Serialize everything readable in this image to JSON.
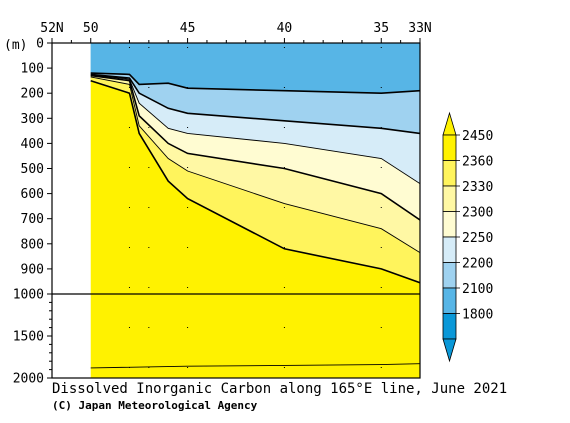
{
  "chart_data": {
    "type": "heatmap",
    "title": "Dissolved Inorganic Carbon along 165°E line, June 2021",
    "credit": "(C) Japan Meteorological Agency",
    "ylabel": "(m)",
    "x_ticks": [
      {
        "lat": 52,
        "label": "52N"
      },
      {
        "lat": 50,
        "label": "50"
      },
      {
        "lat": 45,
        "label": "45"
      },
      {
        "lat": 40,
        "label": "40"
      },
      {
        "lat": 35,
        "label": "35"
      },
      {
        "lat": 33,
        "label": "33N"
      }
    ],
    "x_minor_ticks": [
      51,
      49,
      48,
      47,
      46,
      44,
      43,
      42,
      41,
      39,
      38,
      37,
      36,
      34
    ],
    "y_ticks_upper": [
      {
        "depth": 0,
        "label": "0"
      },
      {
        "depth": 100,
        "label": "100"
      },
      {
        "depth": 200,
        "label": "200"
      },
      {
        "depth": 300,
        "label": "300"
      },
      {
        "depth": 400,
        "label": "400"
      },
      {
        "depth": 500,
        "label": "500"
      },
      {
        "depth": 600,
        "label": "600"
      },
      {
        "depth": 700,
        "label": "700"
      },
      {
        "depth": 800,
        "label": "800"
      },
      {
        "depth": 900,
        "label": "900"
      },
      {
        "depth": 1000,
        "label": "1000"
      }
    ],
    "y_ticks_lower": [
      {
        "depth": 1500,
        "label": "1500"
      },
      {
        "depth": 2000,
        "label": "2000"
      }
    ],
    "xlim": [
      52,
      33
    ],
    "ylim": [
      0,
      2000
    ],
    "data_lat_range": [
      50,
      33
    ],
    "stations_lat": [
      48,
      47,
      45,
      40,
      35
    ],
    "colorbar": {
      "labels": [
        "2450",
        "2360",
        "2330",
        "2300",
        "2250",
        "2200",
        "2100",
        "1800"
      ],
      "levels": [
        {
          "color": "#fff200"
        },
        {
          "color": "#fff45c"
        },
        {
          "color": "#fff8a4"
        },
        {
          "color": "#fffcd2"
        },
        {
          "color": "#d6ecf8"
        },
        {
          "color": "#9fd2f0"
        },
        {
          "color": "#57b5e6"
        },
        {
          "color": "#0a98d8"
        }
      ]
    },
    "contours": [
      {
        "value": 2450,
        "points": [
          [
            50,
            1880
          ],
          [
            45,
            1860
          ],
          [
            40,
            1850
          ],
          [
            35,
            1840
          ],
          [
            33,
            1830
          ]
        ]
      },
      {
        "value": 2360,
        "points": [
          [
            50,
            150
          ],
          [
            48,
            200
          ],
          [
            47.5,
            360
          ],
          [
            46,
            550
          ],
          [
            45,
            620
          ],
          [
            40,
            820
          ],
          [
            35,
            900
          ],
          [
            33,
            955
          ]
        ]
      },
      {
        "value": 2330,
        "points": [
          [
            50,
            135
          ],
          [
            48,
            165
          ],
          [
            47.5,
            330
          ],
          [
            46,
            460
          ],
          [
            45,
            510
          ],
          [
            40,
            640
          ],
          [
            35,
            740
          ],
          [
            33,
            835
          ]
        ]
      },
      {
        "value": 2300,
        "points": [
          [
            50,
            130
          ],
          [
            48,
            150
          ],
          [
            47.5,
            290
          ],
          [
            46,
            400
          ],
          [
            45,
            440
          ],
          [
            40,
            500
          ],
          [
            35,
            600
          ],
          [
            33,
            705
          ]
        ]
      },
      {
        "value": 2250,
        "points": [
          [
            50,
            127
          ],
          [
            48,
            145
          ],
          [
            47.5,
            240
          ],
          [
            46,
            340
          ],
          [
            45,
            360
          ],
          [
            40,
            400
          ],
          [
            35,
            460
          ],
          [
            33,
            560
          ]
        ]
      },
      {
        "value": 2200,
        "points": [
          [
            50,
            125
          ],
          [
            48,
            140
          ],
          [
            47.5,
            200
          ],
          [
            46,
            260
          ],
          [
            45,
            280
          ],
          [
            40,
            310
          ],
          [
            35,
            340
          ],
          [
            33,
            360
          ]
        ]
      },
      {
        "value": 2100,
        "points": [
          [
            50,
            120
          ],
          [
            48,
            125
          ],
          [
            47.5,
            165
          ],
          [
            46,
            160
          ],
          [
            45,
            180
          ],
          [
            40,
            190
          ],
          [
            35,
            200
          ],
          [
            33,
            190
          ]
        ]
      }
    ]
  }
}
